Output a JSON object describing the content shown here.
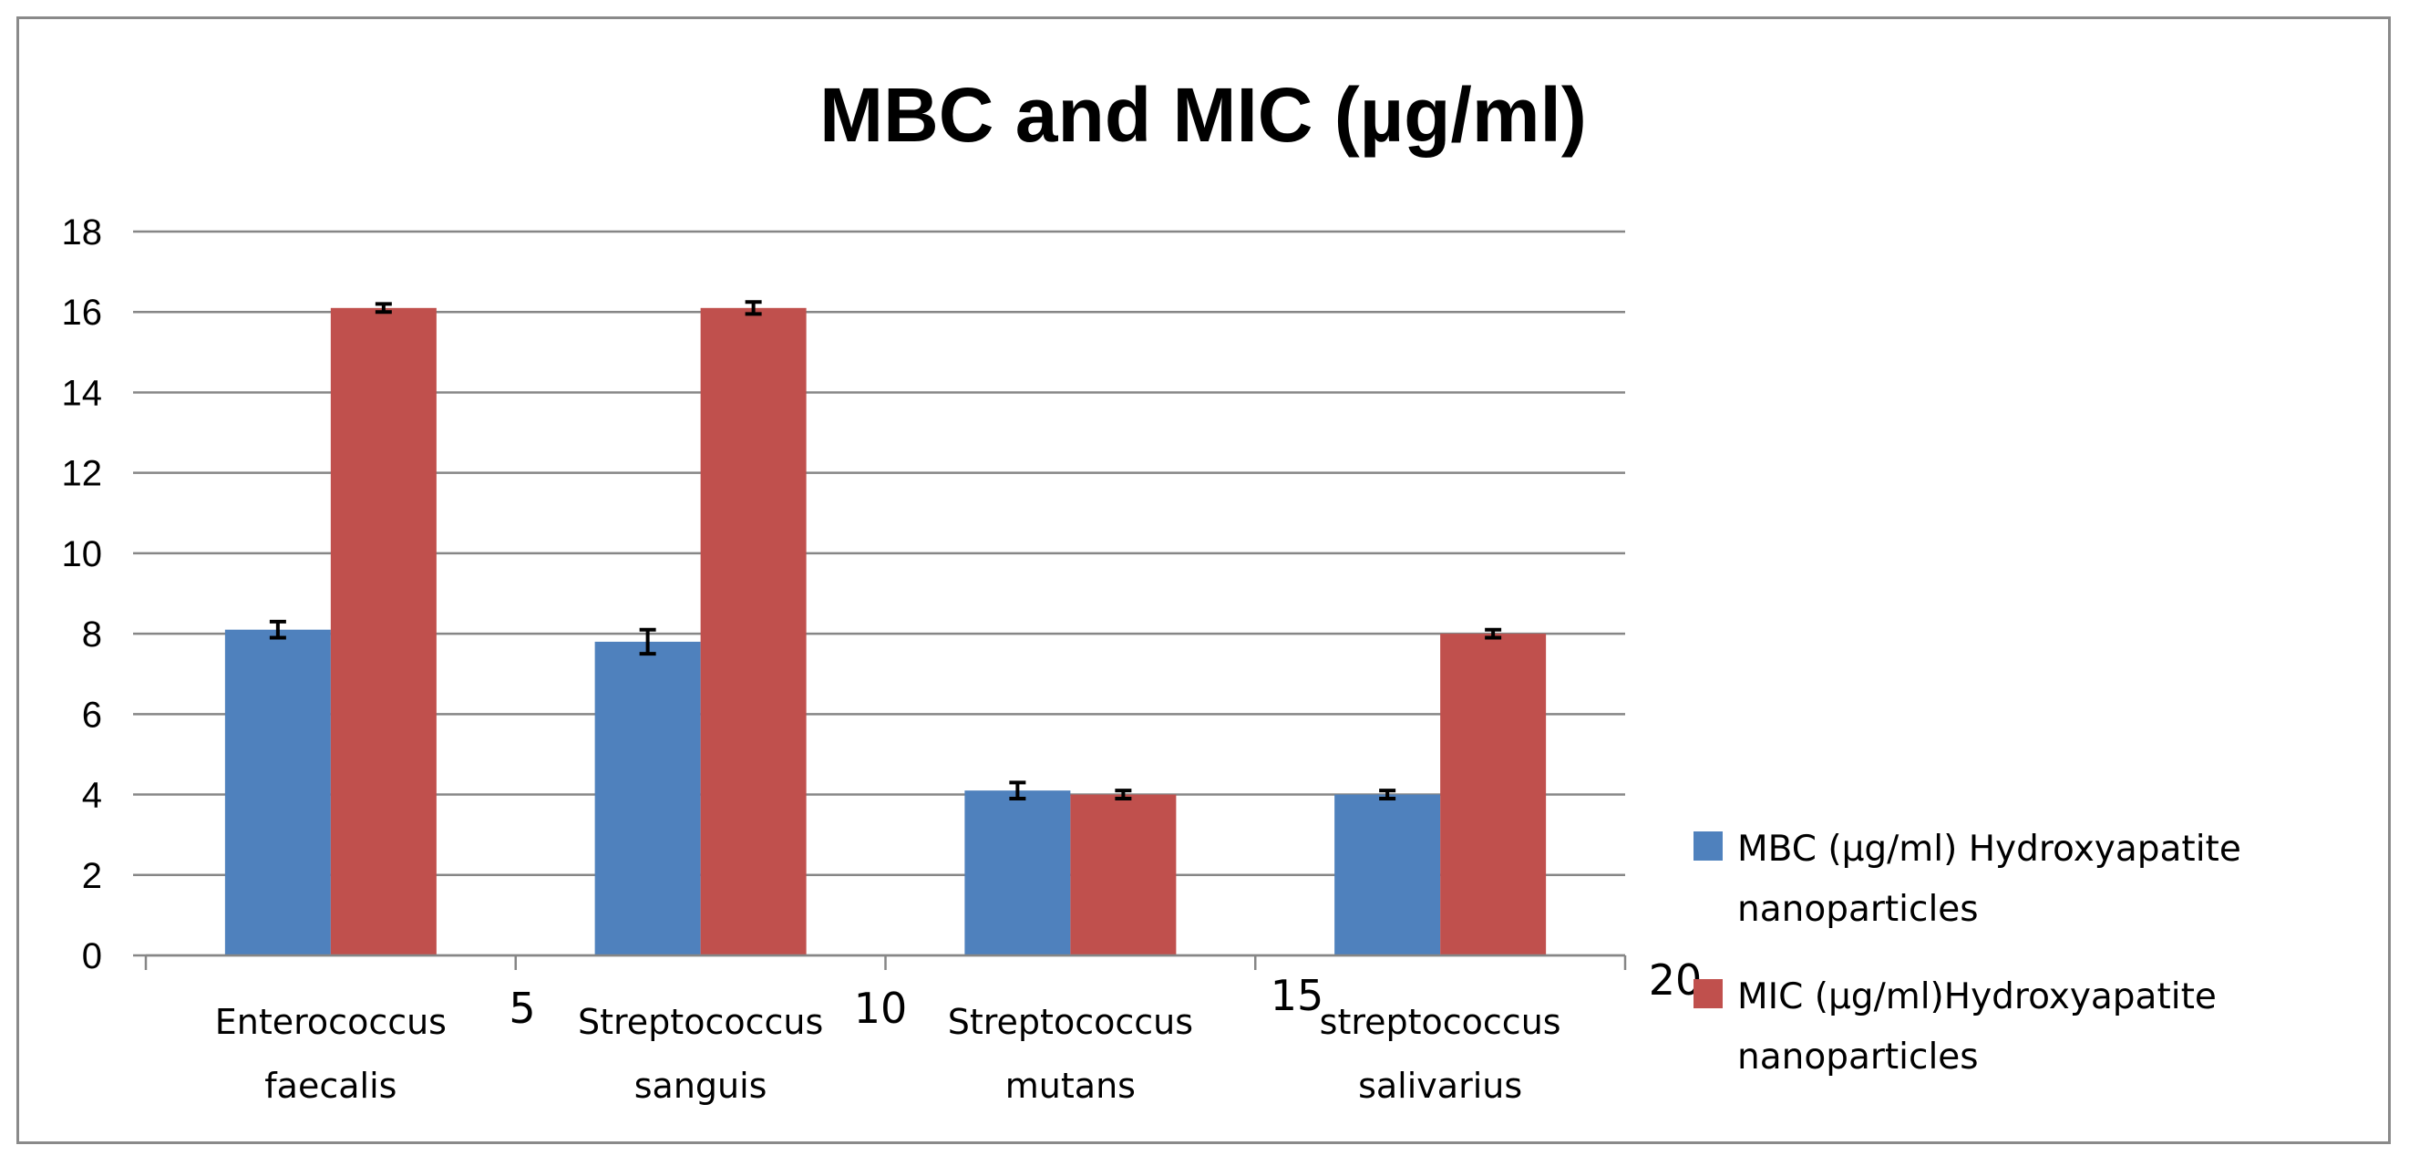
{
  "chart_data": {
    "type": "bar",
    "title": "MBC and MIC (µg/ml)",
    "categories": [
      [
        "Enterococcus",
        "faecalis"
      ],
      [
        "Streptococcus",
        "sanguis"
      ],
      [
        "Streptococcus",
        "mutans"
      ],
      [
        "streptococcus",
        "salivarius"
      ]
    ],
    "series": [
      {
        "name": "MBC (µg/ml) Hydroxyapatite nanoparticles",
        "legend_lines": [
          "MBC (µg/ml) Hydroxyapatite",
          "nanoparticles"
        ],
        "color": "#4f81bd",
        "values": [
          8.1,
          7.8,
          4.1,
          4.0
        ],
        "errors": [
          0.2,
          0.3,
          0.2,
          0.1
        ]
      },
      {
        "name": "MIC (µg/ml)Hydroxyapatite nanoparticles",
        "legend_lines": [
          "MIC (µg/ml)Hydroxyapatite",
          "nanoparticles"
        ],
        "color": "#c0504d",
        "values": [
          16.1,
          16.1,
          4.0,
          8.0
        ],
        "errors": [
          0.1,
          0.15,
          0.1,
          0.1
        ]
      }
    ],
    "ylim": [
      0,
      18
    ],
    "yticks": [
      "0",
      "2",
      "4",
      "6",
      "8",
      "10",
      "12",
      "14",
      "16",
      "18"
    ],
    "secondary_x_labels": [
      "5",
      "10",
      "15",
      "20"
    ],
    "xlabel": "",
    "ylabel": "",
    "grid": true,
    "legend_position": "right"
  }
}
